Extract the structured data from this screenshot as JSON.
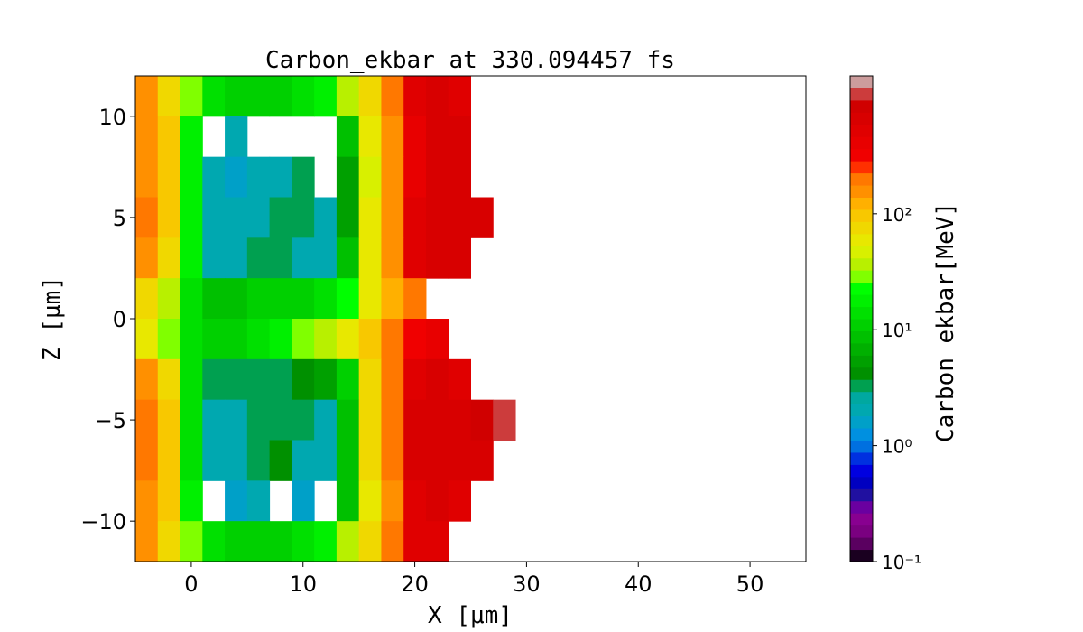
{
  "chart_data": {
    "type": "heatmap",
    "title": "Carbon_ekbar at 330.094457 fs",
    "xlabel": "X [μm]",
    "ylabel": "Z [μm]",
    "xlim": [
      -5,
      55
    ],
    "ylim": [
      -12,
      12
    ],
    "x_ticks": [
      "0",
      "10",
      "20",
      "30",
      "40",
      "50"
    ],
    "x_tick_values": [
      0,
      10,
      20,
      30,
      40,
      50
    ],
    "y_ticks": [
      "−10",
      "−5",
      "0",
      "5",
      "10"
    ],
    "y_tick_values": [
      -10,
      -5,
      0,
      5,
      10
    ],
    "grid": false,
    "x_centers": [
      -4,
      -2,
      0,
      2,
      4,
      6,
      8,
      10,
      12,
      14,
      16,
      18,
      20,
      22,
      24,
      26,
      28,
      30
    ],
    "z_centers": [
      11,
      9,
      7,
      5,
      3,
      1,
      -1,
      -3,
      -5,
      -7,
      -9,
      -11
    ],
    "cell_size": [
      2,
      2
    ],
    "values_MeV": [
      [
        150,
        80,
        30,
        15,
        12,
        12,
        12,
        15,
        20,
        40,
        80,
        200,
        500,
        600,
        500,
        null,
        null,
        null
      ],
      [
        150,
        100,
        20,
        null,
        2,
        null,
        null,
        null,
        null,
        8,
        60,
        150,
        400,
        600,
        600,
        null,
        null,
        null
      ],
      [
        150,
        100,
        20,
        2,
        1.5,
        2,
        2,
        3,
        null,
        6,
        50,
        150,
        400,
        600,
        600,
        null,
        null,
        null
      ],
      [
        180,
        100,
        20,
        2,
        2,
        2,
        3,
        3,
        2,
        6,
        60,
        150,
        500,
        700,
        700,
        600,
        null,
        null
      ],
      [
        150,
        80,
        20,
        2,
        2,
        3,
        3,
        2,
        2,
        8,
        60,
        150,
        500,
        650,
        600,
        null,
        null,
        null
      ],
      [
        80,
        40,
        15,
        8,
        8,
        10,
        10,
        12,
        15,
        25,
        60,
        120,
        200,
        null,
        null,
        null,
        null,
        null
      ],
      [
        60,
        30,
        15,
        12,
        12,
        15,
        20,
        30,
        40,
        60,
        100,
        200,
        300,
        400,
        null,
        null,
        null,
        null
      ],
      [
        150,
        80,
        15,
        3,
        3,
        3,
        3,
        4,
        5,
        10,
        80,
        200,
        500,
        600,
        500,
        null,
        null,
        null
      ],
      [
        200,
        100,
        15,
        2,
        2,
        3,
        3,
        3,
        2,
        8,
        80,
        200,
        600,
        700,
        700,
        800,
        1200,
        null
      ],
      [
        180,
        100,
        15,
        2,
        2,
        3,
        4,
        2,
        2,
        8,
        80,
        200,
        600,
        700,
        700,
        600,
        null,
        null
      ],
      [
        150,
        100,
        20,
        null,
        1.5,
        2,
        null,
        1.5,
        null,
        8,
        60,
        150,
        500,
        600,
        500,
        null,
        null,
        null
      ],
      [
        150,
        80,
        30,
        15,
        12,
        12,
        12,
        15,
        20,
        40,
        80,
        200,
        500,
        500,
        null,
        null,
        null,
        null
      ]
    ],
    "colorbar": {
      "label": "Carbon_ekbar[MeV]",
      "scale": "log",
      "range": [
        0.1,
        1550
      ],
      "ticks": [
        "10⁻¹",
        "10⁰",
        "10¹",
        "10²"
      ],
      "tick_values": [
        0.1,
        1,
        10,
        100
      ],
      "colormap": "nipy_spectral",
      "colors": [
        "#1a0020",
        "#5a0060",
        "#7a0080",
        "#880090",
        "#6a00a0",
        "#2010a0",
        "#0000c0",
        "#0000e0",
        "#0030e0",
        "#0070e0",
        "#0090e0",
        "#00a0c8",
        "#00a8b0",
        "#00a8a0",
        "#00a050",
        "#009000",
        "#00a000",
        "#00b000",
        "#00c000",
        "#00d000",
        "#00e000",
        "#00f000",
        "#00ff00",
        "#80ff00",
        "#b8f000",
        "#d8f000",
        "#e8e800",
        "#f0d800",
        "#f8c800",
        "#ffb000",
        "#ff9000",
        "#ff7800",
        "#ff3000",
        "#f00000",
        "#e80000",
        "#e00000",
        "#d80000",
        "#d00000",
        "#cc3c3c",
        "#cc9c9c"
      ]
    }
  }
}
